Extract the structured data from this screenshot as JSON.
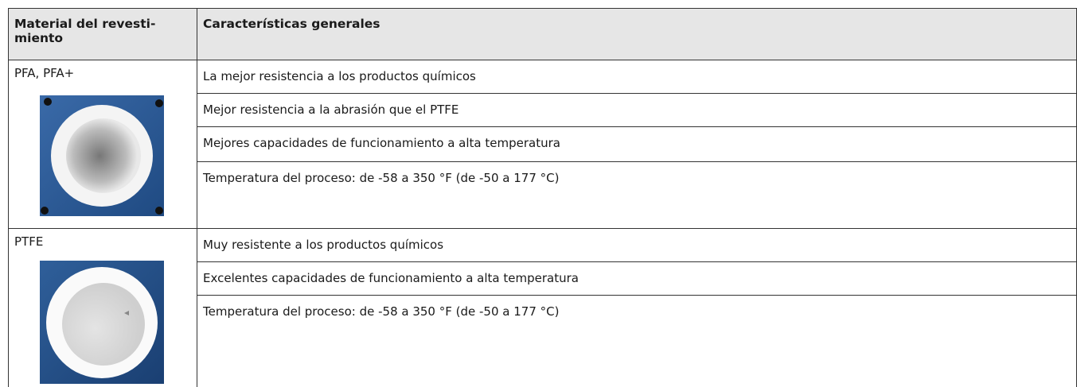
{
  "table": {
    "header": [
      "Material del revesti-\nmiento",
      "Características generales"
    ],
    "groups": [
      {
        "material": "PFA, PFA+",
        "features": [
          "La mejor resistencia a los productos químicos",
          "Mejor resistencia a la abrasión que el PTFE",
          "Mejores capacidades de funcionamiento a alta temperatura",
          "Temperatura del proceso: de -58 a 350 °F (de -50 a 177 °C)"
        ]
      },
      {
        "material": "PTFE",
        "features": [
          "Muy resistente a los productos químicos",
          "Excelentes capacidades de funcionamiento a alta temperatura",
          "Temperatura del proceso: de -58 a 350 °F (de -50 a 177 °C)"
        ]
      }
    ]
  }
}
